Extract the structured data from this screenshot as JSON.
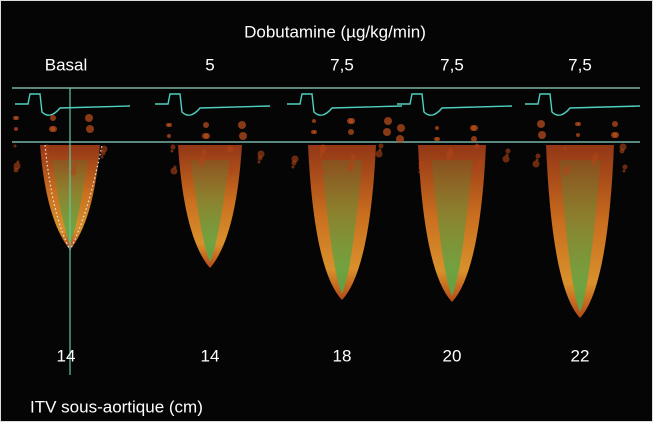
{
  "figure": {
    "title": "Dobutamine (µg/kg/min)",
    "columns": [
      {
        "dose": "Basal",
        "itv": "14"
      },
      {
        "dose": "5",
        "itv": "14"
      },
      {
        "dose": "7,5",
        "itv": "18"
      },
      {
        "dose": "7,5",
        "itv": "20"
      },
      {
        "dose": "7,5",
        "itv": "22"
      }
    ],
    "footer": "ITV sous-aortique (cm)"
  }
}
